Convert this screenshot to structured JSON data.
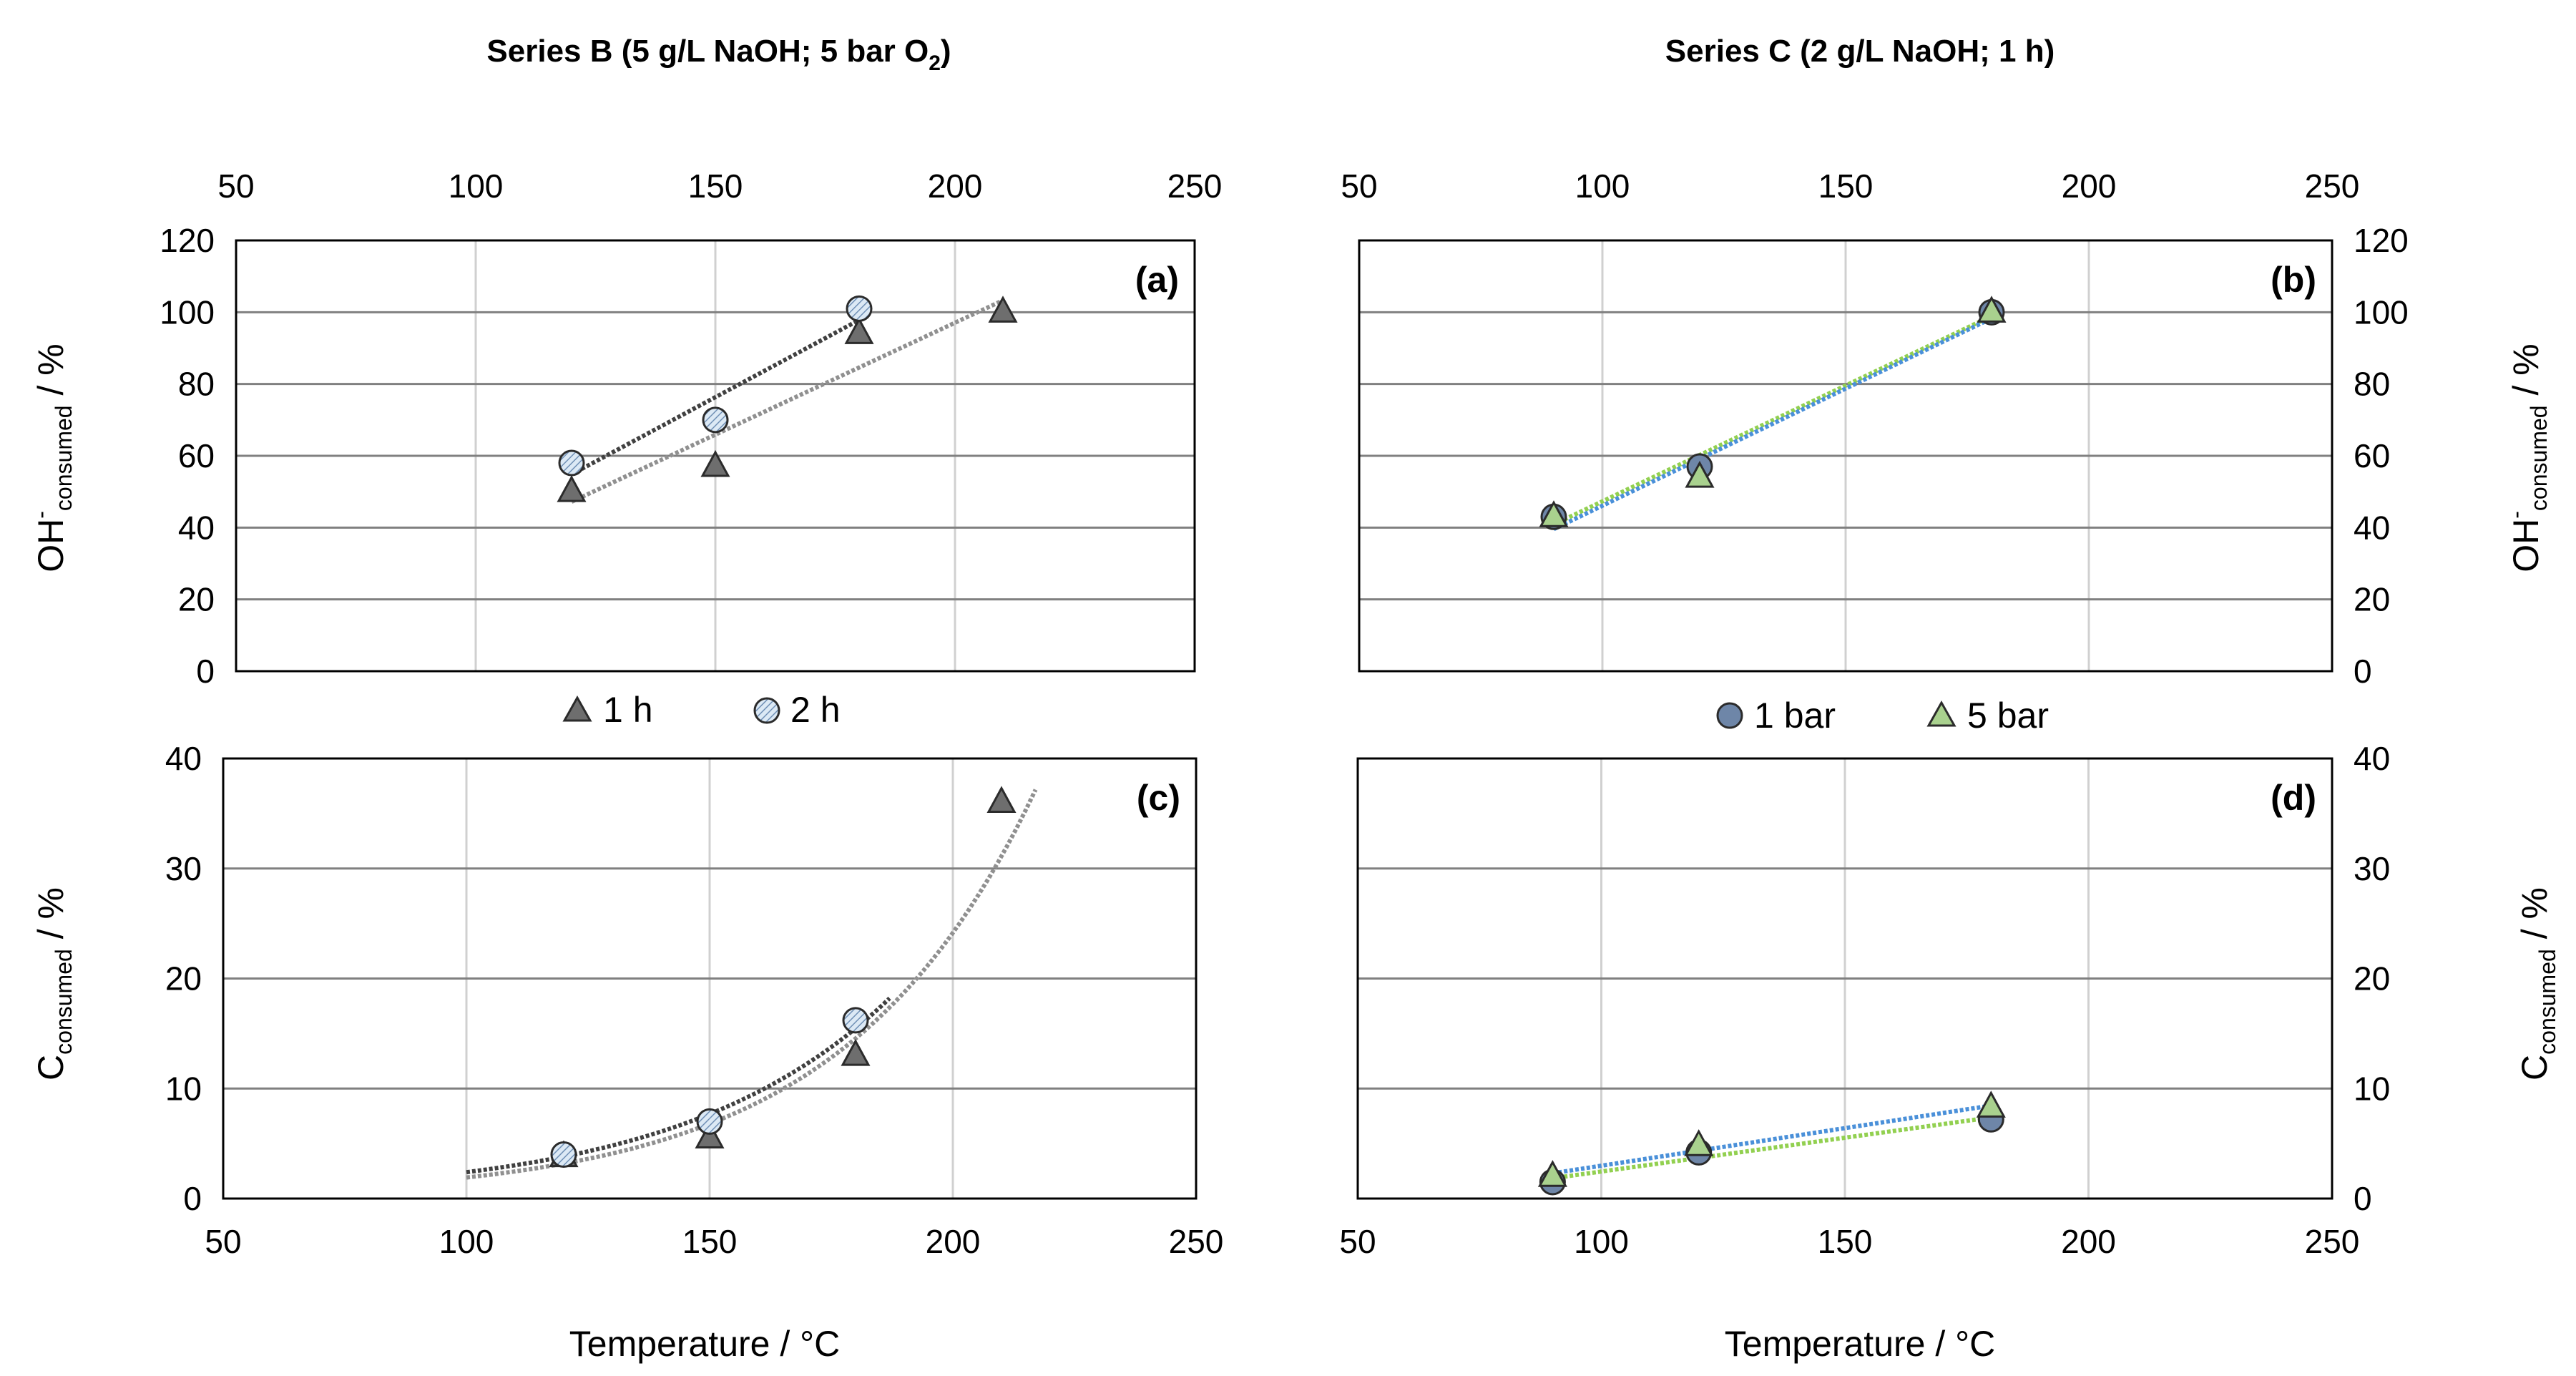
{
  "titles": {
    "series_b": "Series B (5 g/L NaOH; 5 bar O",
    "series_b_sub": "2",
    "series_b_end": ")",
    "series_c": "Series C (2 g/L NaOH; 1 h)"
  },
  "axis_labels": {
    "oh_main": "OH",
    "oh_sup": "-",
    "oh_sub": "consumed",
    "oh_tail": " / %",
    "c_main": "C",
    "c_sub": "consumed",
    "c_tail": " / %",
    "temperature": "Temperature / °C"
  },
  "legends": {
    "left": [
      "1 h",
      "2 h"
    ],
    "right": [
      "1 bar",
      "5 bar"
    ]
  },
  "colors": {
    "gray_marker": "#6e6e6e",
    "hatch_marker_fill": "#dce9f5",
    "blue_marker": "#6e86a8",
    "green_marker": "#a9d18e",
    "blue_trend": "#4a90d9",
    "green_trend": "#92d050",
    "dark_trend": "#404040",
    "light_trend": "#909090",
    "grid_h": "#808080",
    "grid_v": "#d0d0d0"
  },
  "chart_data": [
    {
      "type": "scatter",
      "panel_label": "(a)",
      "x_tick_position": "top",
      "y_tick_position": "left",
      "xlim": [
        50,
        250
      ],
      "ylim": [
        0,
        120
      ],
      "x_ticks": [
        50,
        100,
        150,
        200,
        250
      ],
      "y_ticks": [
        0,
        20,
        40,
        60,
        80,
        100,
        120
      ],
      "series": [
        {
          "name": "1 h",
          "marker": "triangle",
          "x": [
            120,
            150,
            180,
            210
          ],
          "y": [
            50,
            57,
            94,
            100
          ],
          "trend": "linear"
        },
        {
          "name": "2 h",
          "marker": "circle-hatched",
          "x": [
            120,
            150,
            180
          ],
          "y": [
            58,
            70,
            101
          ],
          "trend": "linear"
        }
      ]
    },
    {
      "type": "scatter",
      "panel_label": "(b)",
      "x_tick_position": "top",
      "y_tick_position": "right",
      "xlim": [
        50,
        250
      ],
      "ylim": [
        0,
        120
      ],
      "x_ticks": [
        50,
        100,
        150,
        200,
        250
      ],
      "y_ticks": [
        0,
        20,
        40,
        60,
        80,
        100,
        120
      ],
      "series": [
        {
          "name": "1 bar",
          "marker": "circle",
          "x": [
            90,
            120,
            180
          ],
          "y": [
            43,
            57,
            100
          ],
          "trend": "linear"
        },
        {
          "name": "5 bar",
          "marker": "triangle",
          "x": [
            90,
            120,
            180
          ],
          "y": [
            43,
            54,
            100
          ],
          "trend": "linear"
        }
      ]
    },
    {
      "type": "scatter",
      "panel_label": "(c)",
      "x_tick_position": "bottom",
      "y_tick_position": "left",
      "xlim": [
        50,
        250
      ],
      "ylim": [
        0,
        40
      ],
      "x_ticks": [
        50,
        100,
        150,
        200,
        250
      ],
      "y_ticks": [
        0,
        10,
        20,
        30,
        40
      ],
      "series": [
        {
          "name": "1 h",
          "marker": "triangle",
          "x": [
            120,
            150,
            180,
            210
          ],
          "y": [
            3.8,
            5.5,
            13,
            36
          ],
          "trend": "exponential",
          "trend_range": [
            100,
            217
          ]
        },
        {
          "name": "2 h",
          "marker": "circle-hatched",
          "x": [
            120,
            150,
            180
          ],
          "y": [
            4,
            7,
            16.2
          ],
          "trend": "exponential",
          "trend_range": [
            100,
            187
          ]
        }
      ]
    },
    {
      "type": "scatter",
      "panel_label": "(d)",
      "x_tick_position": "bottom",
      "y_tick_position": "right",
      "xlim": [
        50,
        250
      ],
      "ylim": [
        0,
        40
      ],
      "x_ticks": [
        50,
        100,
        150,
        200,
        250
      ],
      "y_ticks": [
        0,
        10,
        20,
        30,
        40
      ],
      "series": [
        {
          "name": "1 bar",
          "marker": "circle",
          "x": [
            90,
            120,
            180
          ],
          "y": [
            1.5,
            4.2,
            7.2
          ],
          "trend": "linear"
        },
        {
          "name": "5 bar",
          "marker": "triangle",
          "x": [
            90,
            120,
            180
          ],
          "y": [
            2,
            4.8,
            8.3
          ],
          "trend": "linear"
        }
      ]
    }
  ]
}
